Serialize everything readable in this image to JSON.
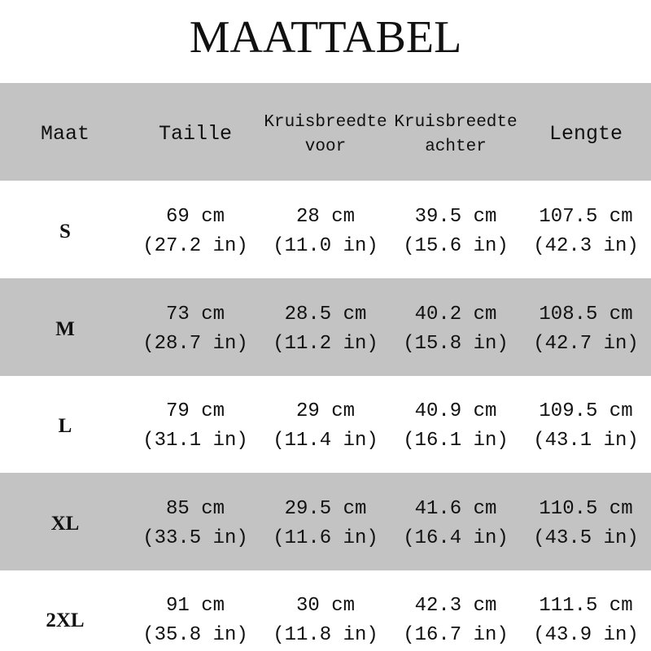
{
  "title": "MAATTABEL",
  "table": {
    "header": [
      [
        "Maat"
      ],
      [
        "Taille"
      ],
      [
        "Kruisbreedte",
        "voor"
      ],
      [
        "Kruisbreedte",
        "achter"
      ],
      [
        "Lengte"
      ]
    ],
    "rows": [
      [
        "S",
        [
          "69 cm",
          "(27.2 in)"
        ],
        [
          "28 cm",
          "(11.0 in)"
        ],
        [
          "39.5 cm",
          "(15.6 in)"
        ],
        [
          "107.5 cm",
          "(42.3 in)"
        ]
      ],
      [
        "M",
        [
          "73 cm",
          "(28.7 in)"
        ],
        [
          "28.5 cm",
          "(11.2 in)"
        ],
        [
          "40.2 cm",
          "(15.8 in)"
        ],
        [
          "108.5 cm",
          "(42.7 in)"
        ]
      ],
      [
        "L",
        [
          "79 cm",
          "(31.1 in)"
        ],
        [
          "29 cm",
          "(11.4 in)"
        ],
        [
          "40.9 cm",
          "(16.1 in)"
        ],
        [
          "109.5 cm",
          "(43.1 in)"
        ]
      ],
      [
        "XL",
        [
          "85 cm",
          "(33.5 in)"
        ],
        [
          "29.5 cm",
          "(11.6 in)"
        ],
        [
          "41.6 cm",
          "(16.4 in)"
        ],
        [
          "110.5 cm",
          "(43.5 in)"
        ]
      ],
      [
        "2XL",
        [
          "91 cm",
          "(35.8 in)"
        ],
        [
          "30 cm",
          "(11.8 in)"
        ],
        [
          "42.3 cm",
          "(16.7 in)"
        ],
        [
          "111.5 cm",
          "(43.9 in)"
        ]
      ]
    ]
  }
}
